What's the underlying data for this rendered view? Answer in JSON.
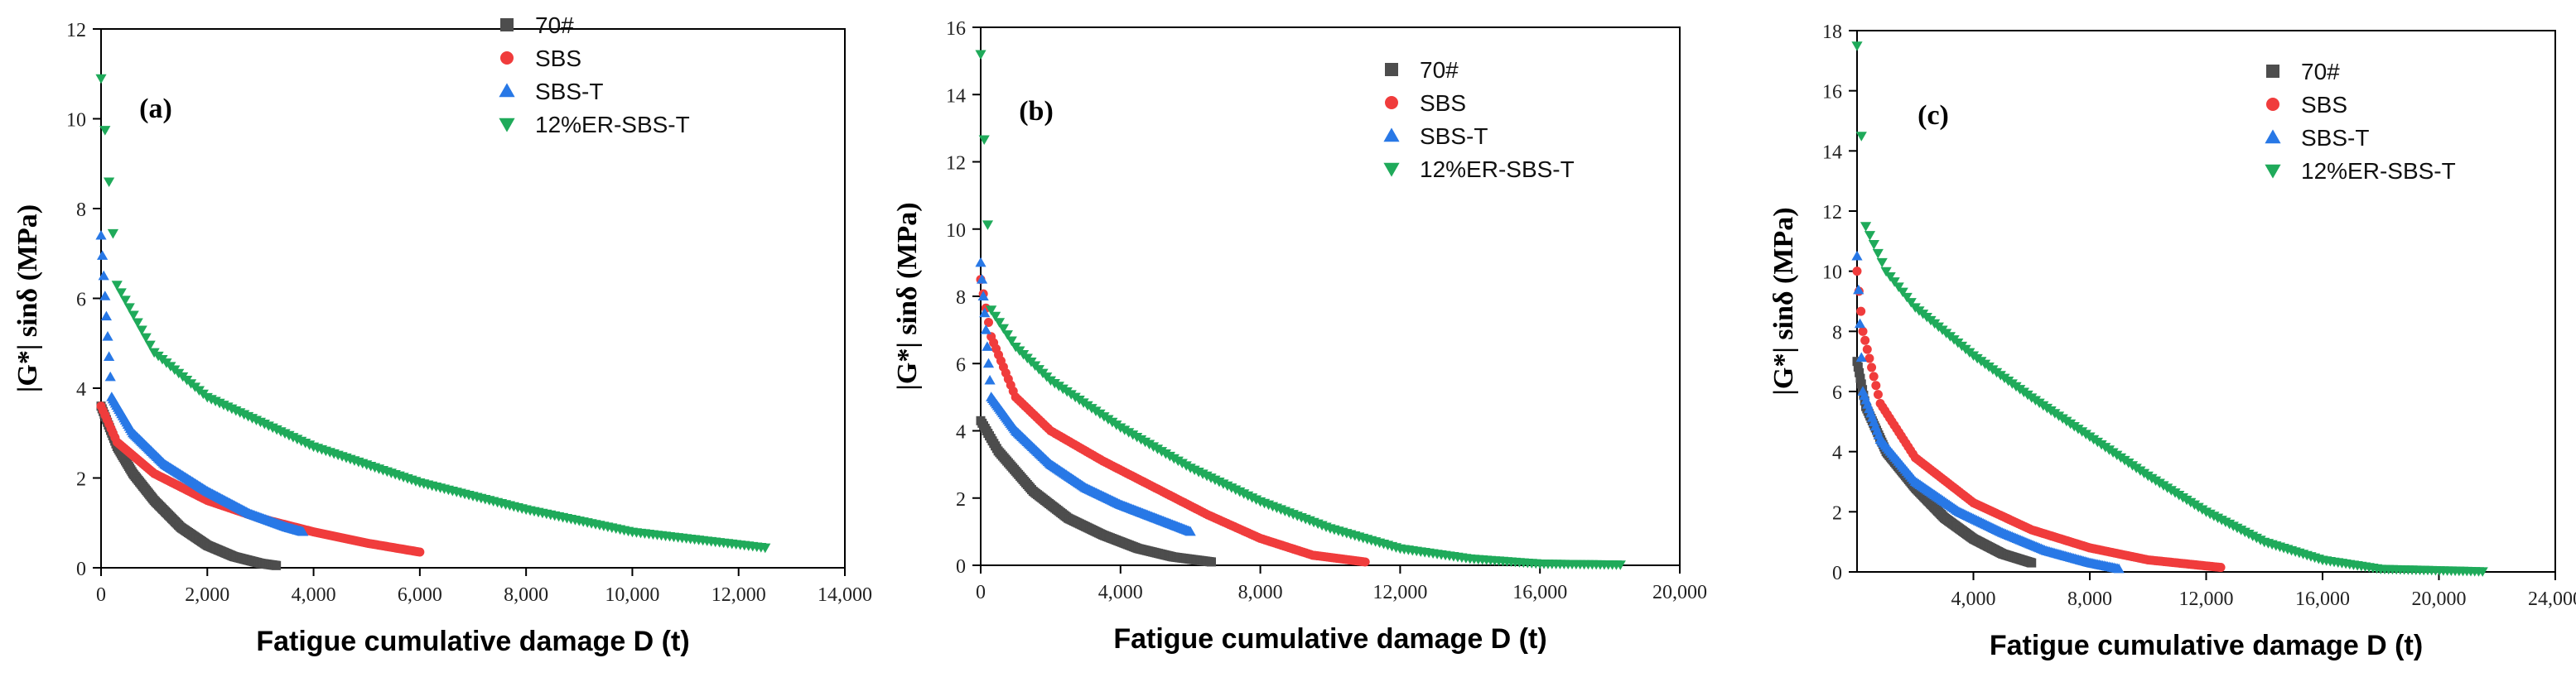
{
  "chart_data": [
    {
      "type": "scatter",
      "panel_label": "(a)",
      "xlabel": "Fatigue cumulative damage D (t)",
      "ylabel": "|G*| sinδ (MPa)",
      "xlim": [
        0,
        14000
      ],
      "ylim": [
        0,
        12
      ],
      "xticks": [
        0,
        2000,
        4000,
        6000,
        8000,
        10000,
        12000,
        14000
      ],
      "xtick_labels": [
        "0",
        "2,000",
        "4,000",
        "6,000",
        "8,000",
        "10,000",
        "12,000",
        "14,000"
      ],
      "yticks": [
        0,
        2,
        4,
        6,
        8,
        10,
        12
      ],
      "ytick_labels": [
        "0",
        "2",
        "4",
        "6",
        "8",
        "10",
        "12"
      ],
      "legend": [
        "70#",
        "SBS",
        "SBS-T",
        "12%ER-SBS-T"
      ],
      "series": [
        {
          "name": "70#",
          "color": "#4d4d4d",
          "marker": "square",
          "x": [
            0,
            300,
            600,
            1000,
            1500,
            2000,
            2500,
            3000,
            3300
          ],
          "y": [
            3.6,
            2.7,
            2.1,
            1.5,
            0.9,
            0.5,
            0.25,
            0.1,
            0.05
          ]
        },
        {
          "name": "SBS",
          "color": "#f03c3c",
          "marker": "circle",
          "x": [
            0,
            300,
            1000,
            2000,
            3000,
            4000,
            5000,
            6000
          ],
          "y": [
            3.6,
            2.8,
            2.1,
            1.5,
            1.1,
            0.8,
            0.55,
            0.35
          ]
        },
        {
          "name": "SBS-T",
          "color": "#2878e6",
          "marker": "triangle-up",
          "x": [
            0,
            200,
            600,
            1200,
            2000,
            2800,
            3500,
            3800
          ],
          "y": [
            7.4,
            3.8,
            3.0,
            2.3,
            1.7,
            1.2,
            0.9,
            0.8
          ]
        },
        {
          "name": "12%ER-SBS-T",
          "color": "#1faa5a",
          "marker": "triangle-down",
          "x": [
            0,
            300,
            1000,
            2000,
            4000,
            6000,
            8000,
            10000,
            12500
          ],
          "y": [
            10.9,
            6.3,
            4.8,
            3.8,
            2.7,
            1.9,
            1.3,
            0.8,
            0.45
          ]
        }
      ]
    },
    {
      "type": "scatter",
      "panel_label": "(b)",
      "xlabel": "Fatigue cumulative damage D (t)",
      "ylabel": "|G*| sinδ (MPa)",
      "xlim": [
        0,
        20000
      ],
      "ylim": [
        0,
        16
      ],
      "xticks": [
        0,
        4000,
        8000,
        12000,
        16000,
        20000
      ],
      "xtick_labels": [
        "0",
        "4,000",
        "8,000",
        "12,000",
        "16,000",
        "20,000"
      ],
      "yticks": [
        0,
        2,
        4,
        6,
        8,
        10,
        12,
        14,
        16
      ],
      "ytick_labels": [
        "0",
        "2",
        "4",
        "6",
        "8",
        "10",
        "12",
        "14",
        "16"
      ],
      "legend": [
        "70#",
        "SBS",
        "SBS-T",
        "12%ER-SBS-T"
      ],
      "series": [
        {
          "name": "70#",
          "color": "#4d4d4d",
          "marker": "square",
          "x": [
            0,
            500,
            1500,
            2500,
            3500,
            4500,
            5500,
            6600
          ],
          "y": [
            4.3,
            3.4,
            2.2,
            1.4,
            0.9,
            0.5,
            0.25,
            0.1
          ]
        },
        {
          "name": "SBS",
          "color": "#f03c3c",
          "marker": "circle",
          "x": [
            0,
            300,
            1000,
            2000,
            3500,
            5000,
            6500,
            8000,
            9500,
            11000
          ],
          "y": [
            8.5,
            6.8,
            5.0,
            4.0,
            3.1,
            2.3,
            1.5,
            0.8,
            0.3,
            0.1
          ]
        },
        {
          "name": "SBS-T",
          "color": "#2878e6",
          "marker": "triangle-up",
          "x": [
            0,
            300,
            1000,
            2000,
            3000,
            4000,
            5000,
            6000
          ],
          "y": [
            9.0,
            5.0,
            4.0,
            3.0,
            2.3,
            1.8,
            1.4,
            1.0
          ]
        },
        {
          "name": "12%ER-SBS-T",
          "color": "#1faa5a",
          "marker": "triangle-down",
          "x": [
            0,
            300,
            1000,
            2000,
            4000,
            6000,
            8000,
            10000,
            12000,
            14000,
            16000,
            18300
          ],
          "y": [
            15.2,
            7.6,
            6.5,
            5.5,
            4.1,
            2.9,
            1.9,
            1.1,
            0.5,
            0.2,
            0.05,
            0.02
          ]
        }
      ]
    },
    {
      "type": "scatter",
      "panel_label": "(c)",
      "xlabel": "Fatigue cumulative damage D (t)",
      "ylabel": "|G*| sinδ (MPa)",
      "xlim": [
        0,
        24000
      ],
      "ylim": [
        0,
        18
      ],
      "xticks": [
        4000,
        8000,
        12000,
        16000,
        20000,
        24000
      ],
      "xtick_labels": [
        "4,000",
        "8,000",
        "12,000",
        "16,000",
        "20,000",
        "24,000"
      ],
      "yticks": [
        0,
        2,
        4,
        6,
        8,
        10,
        12,
        14,
        16,
        18
      ],
      "ytick_labels": [
        "0",
        "2",
        "4",
        "6",
        "8",
        "10",
        "12",
        "14",
        "16",
        "18"
      ],
      "legend": [
        "70#",
        "SBS",
        "SBS-T",
        "12%ER-SBS-T"
      ],
      "series": [
        {
          "name": "70#",
          "color": "#4d4d4d",
          "marker": "square",
          "x": [
            0,
            300,
            1000,
            2000,
            3000,
            4000,
            5000,
            6000
          ],
          "y": [
            7.0,
            5.5,
            4.0,
            2.8,
            1.8,
            1.1,
            0.6,
            0.3
          ]
        },
        {
          "name": "SBS",
          "color": "#f03c3c",
          "marker": "circle",
          "x": [
            0,
            200,
            800,
            2000,
            4000,
            6000,
            8000,
            10000,
            12500
          ],
          "y": [
            10.0,
            8.0,
            5.6,
            3.8,
            2.3,
            1.4,
            0.8,
            0.4,
            0.15
          ]
        },
        {
          "name": "SBS-T",
          "color": "#2878e6",
          "marker": "triangle-up",
          "x": [
            0,
            200,
            800,
            2000,
            3500,
            5000,
            6500,
            8000,
            9000
          ],
          "y": [
            10.5,
            6.0,
            4.4,
            3.0,
            2.0,
            1.3,
            0.7,
            0.3,
            0.1
          ]
        },
        {
          "name": "12%ER-SBS-T",
          "color": "#1faa5a",
          "marker": "triangle-down",
          "x": [
            0,
            300,
            1000,
            2000,
            4000,
            6000,
            8000,
            10000,
            12000,
            14000,
            16000,
            18000,
            21500
          ],
          "y": [
            17.5,
            11.5,
            10.0,
            8.8,
            7.2,
            5.8,
            4.5,
            3.2,
            2.0,
            1.0,
            0.4,
            0.1,
            0.02
          ]
        }
      ]
    }
  ]
}
